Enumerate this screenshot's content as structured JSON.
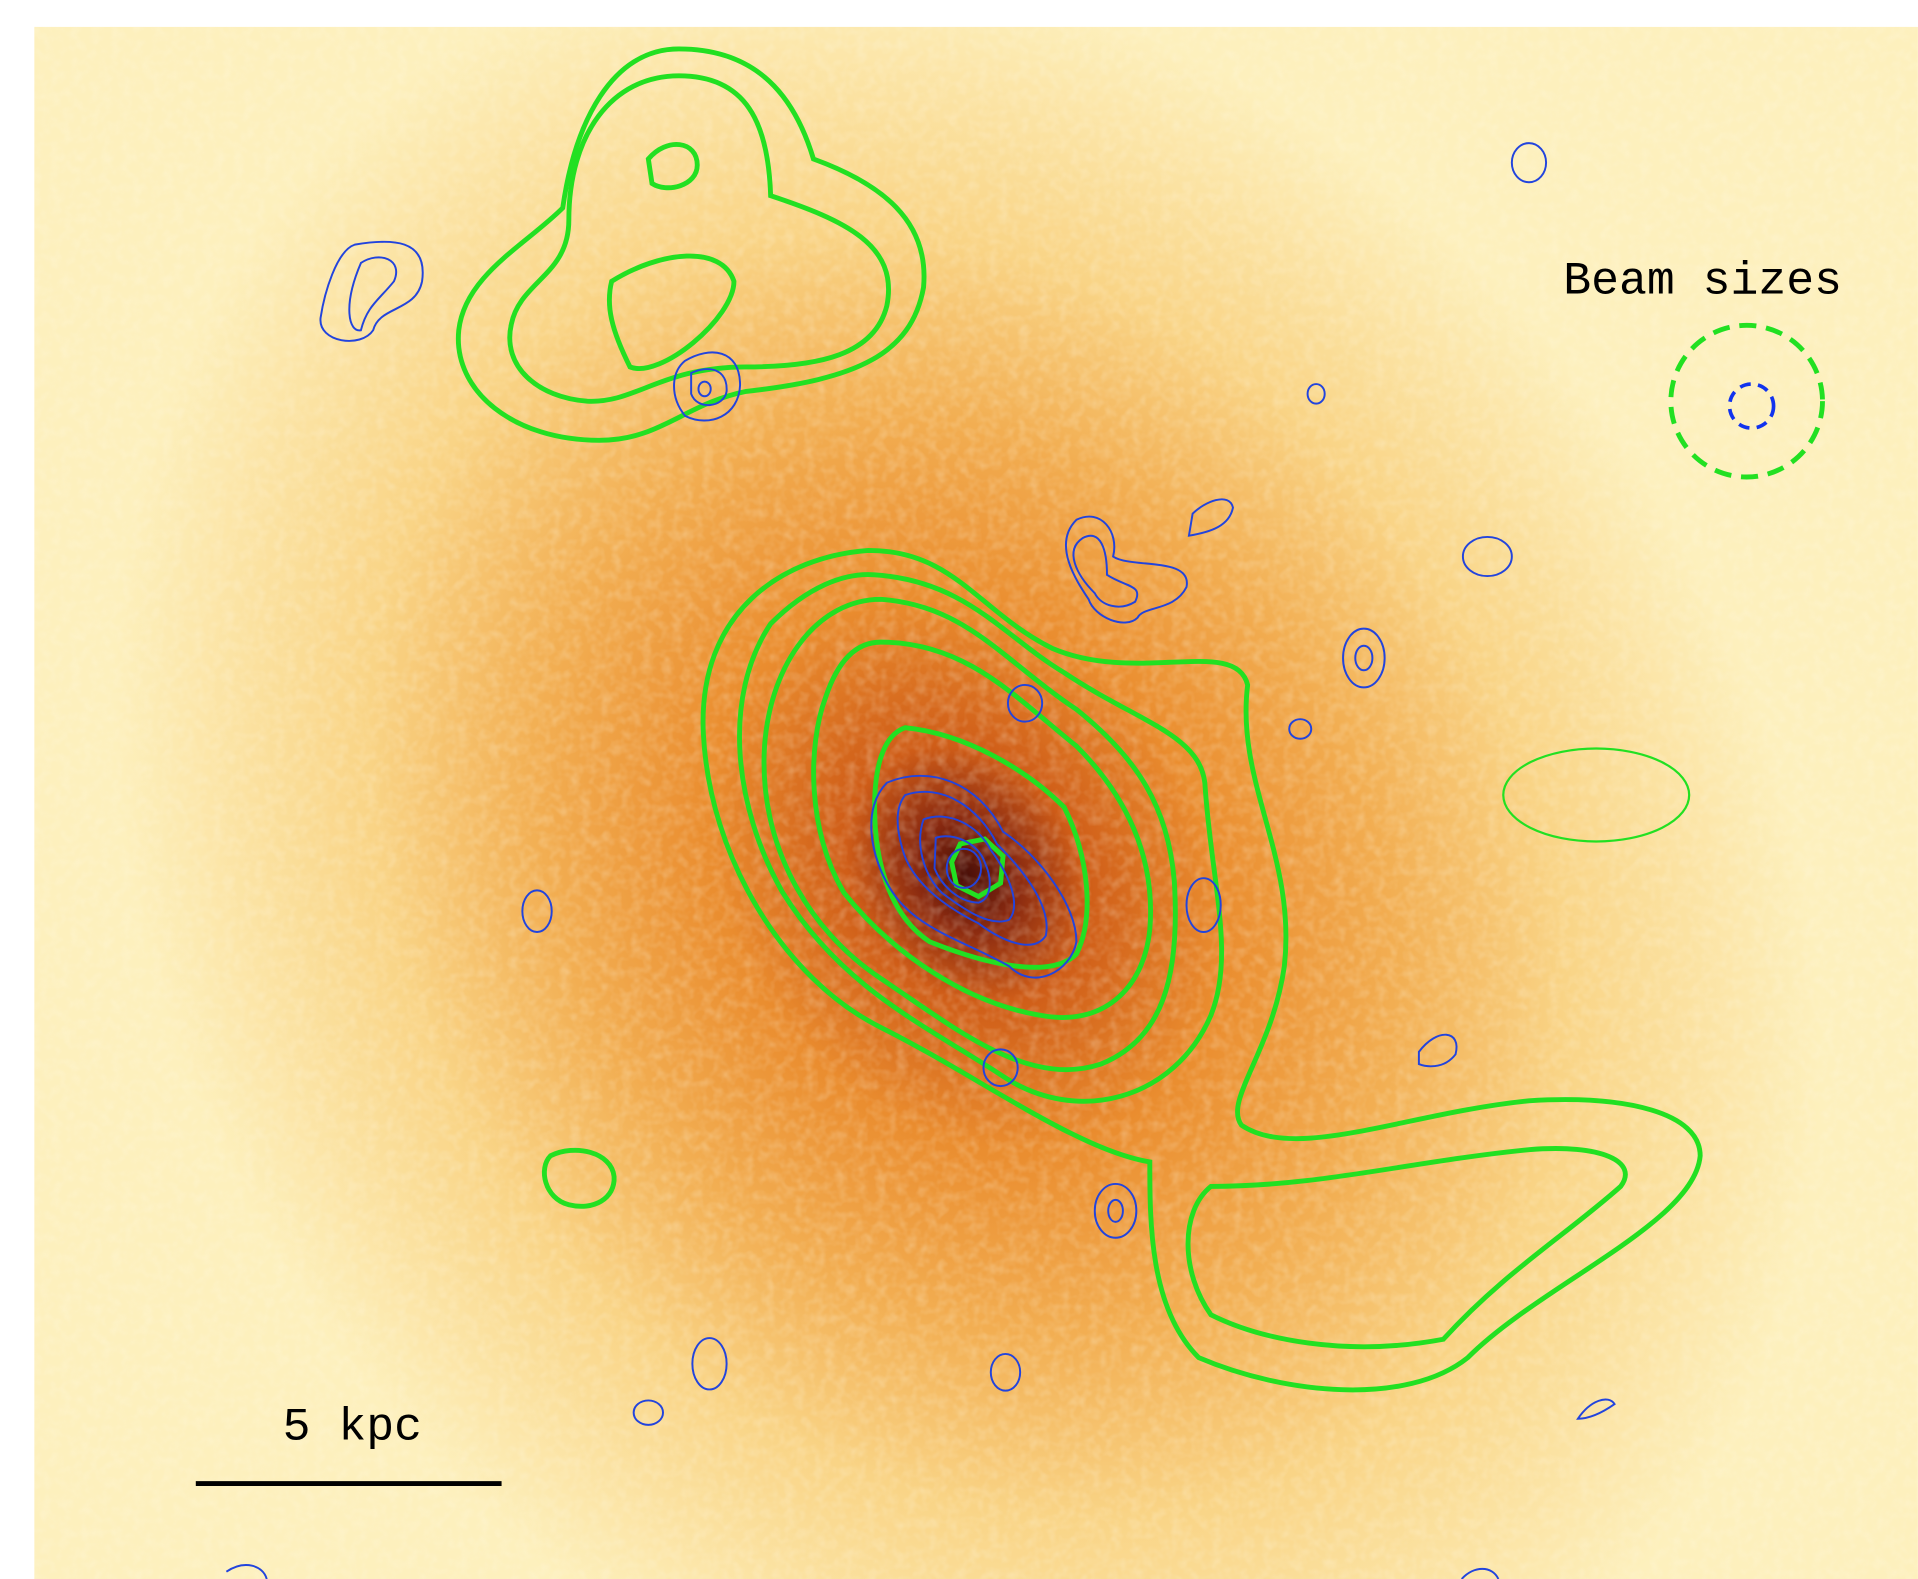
{
  "labels": {
    "beam": "Beam sizes",
    "scale": "5 kpc"
  }
}
